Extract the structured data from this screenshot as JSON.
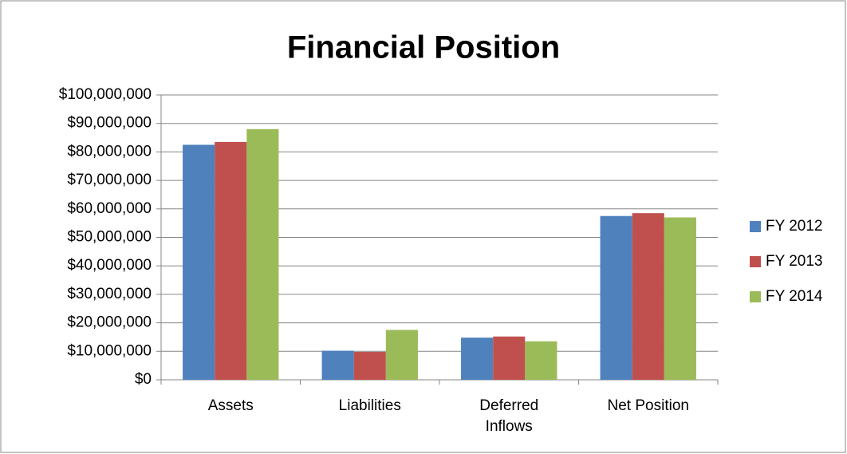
{
  "chart_data": {
    "type": "bar",
    "title": "Financial Position",
    "categories": [
      "Assets",
      "Liabilities",
      "Deferred Inflows",
      "Net Position"
    ],
    "series": [
      {
        "name": "FY 2012",
        "color": "#4f81bd",
        "values": [
          82500000,
          10200000,
          14800000,
          57500000
        ]
      },
      {
        "name": "FY 2013",
        "color": "#c0504d",
        "values": [
          83500000,
          9800000,
          15200000,
          58500000
        ]
      },
      {
        "name": "FY 2014",
        "color": "#9bbb59",
        "values": [
          88000000,
          17500000,
          13500000,
          57000000
        ]
      }
    ],
    "ylim": [
      0,
      100000000
    ],
    "yticks": [
      {
        "value": 0,
        "label": "$0"
      },
      {
        "value": 10000000,
        "label": "$10,000,000"
      },
      {
        "value": 20000000,
        "label": "$20,000,000"
      },
      {
        "value": 30000000,
        "label": "$30,000,000"
      },
      {
        "value": 40000000,
        "label": "$40,000,000"
      },
      {
        "value": 50000000,
        "label": "$50,000,000"
      },
      {
        "value": 60000000,
        "label": "$60,000,000"
      },
      {
        "value": 70000000,
        "label": "$70,000,000"
      },
      {
        "value": 80000000,
        "label": "$80,000,000"
      },
      {
        "value": 90000000,
        "label": "$90,000,000"
      },
      {
        "value": 100000000,
        "label": "$100,000,000"
      }
    ],
    "grid": true,
    "legend": "right"
  }
}
